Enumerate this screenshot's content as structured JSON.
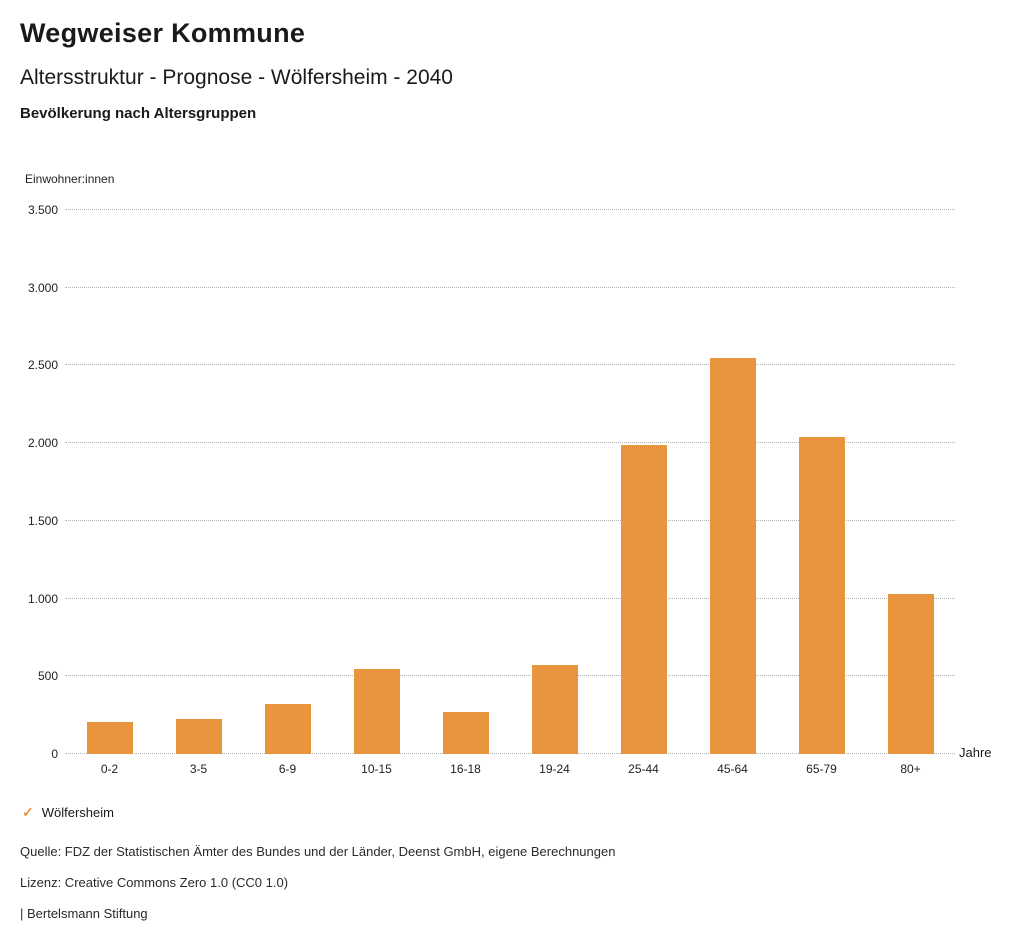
{
  "header": {
    "title": "Wegweiser Kommune",
    "subtitle": "Altersstruktur - Prognose - Wölfersheim - 2040",
    "chart_title": "Bevölkerung nach Altersgruppen"
  },
  "chart_data": {
    "type": "bar",
    "title": "Bevölkerung nach Altersgruppen",
    "ylabel": "Einwohner:innen",
    "xlabel": "Jahre",
    "categories": [
      "0-2",
      "3-5",
      "6-9",
      "10-15",
      "16-18",
      "19-24",
      "25-44",
      "45-64",
      "65-79",
      "80+"
    ],
    "values": [
      205,
      225,
      320,
      545,
      270,
      570,
      1990,
      2550,
      2040,
      1030
    ],
    "series_name": "Wölfersheim",
    "ylim": [
      0,
      3500
    ],
    "yticks": [
      0,
      500,
      1000,
      1500,
      2000,
      2500,
      3000,
      3500
    ],
    "ytick_labels": [
      "0",
      "500",
      "1.000",
      "1.500",
      "2.000",
      "2.500",
      "3.000",
      "3.500"
    ],
    "bar_color": "#E9953D",
    "grid": "horizontal-dotted",
    "legend_position": "bottom-left"
  },
  "legend": {
    "check_icon": "✓",
    "label": "Wölfersheim",
    "color": "#E9953D"
  },
  "footer": {
    "source": "Quelle: FDZ der Statistischen Ämter des Bundes und der Länder, Deenst GmbH, eigene Berechnungen",
    "license": "Lizenz: Creative Commons Zero 1.0 (CC0 1.0)",
    "attribution": "| Bertelsmann Stiftung"
  }
}
